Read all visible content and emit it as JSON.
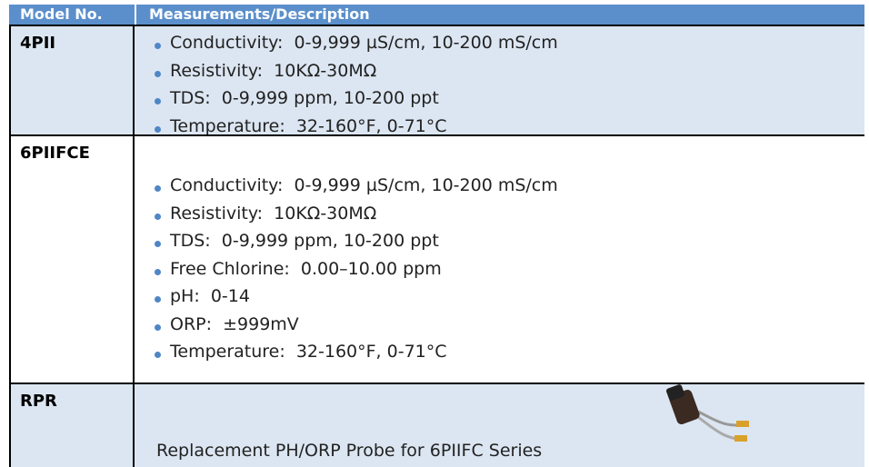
{
  "table": {
    "header": [
      "Model No.",
      "Measurements/Description"
    ],
    "rows": [
      {
        "model": "4PII",
        "items": [
          "Conductivity:  0-9,999 µS/cm, 10-200 mS/cm",
          "Resistivity:  10KΩ-30MΩ",
          "TDS:  0-9,999 ppm, 10-200 ppt",
          "Temperature:  32-160°F, 0-71°C"
        ]
      },
      {
        "model": "6PIIFCE",
        "items": [
          "Conductivity:  0-9,999 µS/cm, 10-200 mS/cm",
          "Resistivity:  10KΩ-30MΩ",
          "TDS:  0-9,999 ppm, 10-200 ppt",
          "Free Chlorine:  0.00–10.00 ppm",
          "pH:  0-14",
          "ORP:  ±999mV",
          "Temperature:  32-160°F, 0-71°C"
        ]
      },
      {
        "model": "RPR",
        "description": "Replacement PH/ORP Probe for 6PIIFC Series"
      }
    ]
  }
}
